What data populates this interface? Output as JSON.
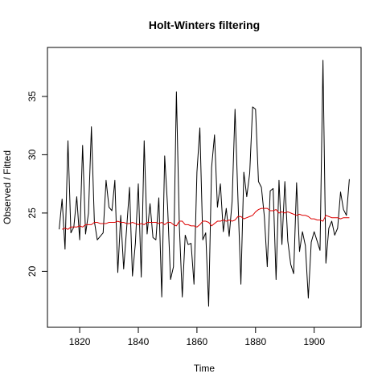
{
  "chart_data": {
    "type": "line",
    "title": "Holt-Winters filtering",
    "xlabel": "Time",
    "ylabel": "Observed / Fitted",
    "xlim": [
      1809,
      1916
    ],
    "ylim": [
      15.2,
      39.2
    ],
    "x_ticks": [
      1820,
      1840,
      1860,
      1880,
      1900
    ],
    "y_ticks": [
      20,
      25,
      30,
      35
    ],
    "grid": false,
    "legend": "none",
    "series": [
      {
        "role": "observed",
        "color": "#000000",
        "x_start": 1813,
        "values": [
          23.6,
          26.2,
          21.9,
          31.2,
          23.3,
          23.8,
          26.4,
          22.7,
          30.8,
          23.2,
          25.0,
          32.4,
          24.3,
          22.7,
          23.0,
          23.3,
          27.8,
          25.5,
          25.2,
          27.8,
          19.9,
          24.8,
          20.2,
          23.6,
          27.2,
          19.6,
          22.4,
          27.5,
          19.5,
          31.2,
          23.2,
          25.8,
          22.9,
          22.7,
          26.3,
          17.8,
          29.9,
          25.5,
          19.3,
          20.4,
          35.4,
          23.9,
          17.8,
          23.1,
          22.3,
          22.4,
          18.9,
          28.5,
          32.3,
          22.7,
          23.3,
          17.0,
          28.9,
          31.7,
          25.5,
          27.5,
          23.4,
          25.4,
          23.0,
          26.0,
          33.9,
          26.2,
          18.9,
          28.5,
          26.4,
          28.4,
          34.1,
          33.9,
          27.7,
          27.2,
          24.7,
          20.4,
          26.9,
          27.1,
          19.3,
          27.8,
          22.3,
          27.7,
          22.6,
          20.6,
          19.8,
          27.6,
          21.7,
          23.4,
          22.2,
          17.7,
          22.5,
          23.4,
          22.6,
          21.8,
          38.1,
          20.7,
          23.7,
          24.3,
          23.1,
          23.7,
          26.8,
          25.3,
          24.8,
          27.9
        ]
      },
      {
        "role": "fitted",
        "color": "#dd0000",
        "x_start": 1814,
        "values": [
          23.6,
          23.7,
          23.6,
          23.8,
          23.8,
          23.8,
          23.9,
          23.8,
          24.0,
          24.0,
          24.0,
          24.2,
          24.2,
          24.1,
          24.1,
          24.1,
          24.2,
          24.2,
          24.2,
          24.3,
          24.2,
          24.2,
          24.1,
          24.1,
          24.2,
          24.1,
          24.0,
          24.1,
          24.0,
          24.2,
          24.2,
          24.2,
          24.2,
          24.1,
          24.2,
          24.0,
          24.2,
          24.2,
          24.0,
          23.9,
          24.3,
          24.3,
          24.0,
          24.0,
          23.9,
          23.9,
          23.8,
          24.0,
          24.3,
          24.3,
          24.2,
          23.9,
          24.1,
          24.3,
          24.3,
          24.4,
          24.3,
          24.4,
          24.3,
          24.4,
          24.7,
          24.7,
          24.5,
          24.6,
          24.7,
          24.8,
          25.1,
          25.3,
          25.4,
          25.4,
          25.4,
          25.2,
          25.2,
          25.3,
          25.0,
          25.1,
          25.0,
          25.1,
          25.0,
          24.9,
          24.8,
          24.9,
          24.8,
          24.8,
          24.7,
          24.5,
          24.5,
          24.4,
          24.4,
          24.3,
          24.8,
          24.7,
          24.6,
          24.6,
          24.6,
          24.5,
          24.6,
          24.6,
          24.6
        ]
      }
    ]
  }
}
